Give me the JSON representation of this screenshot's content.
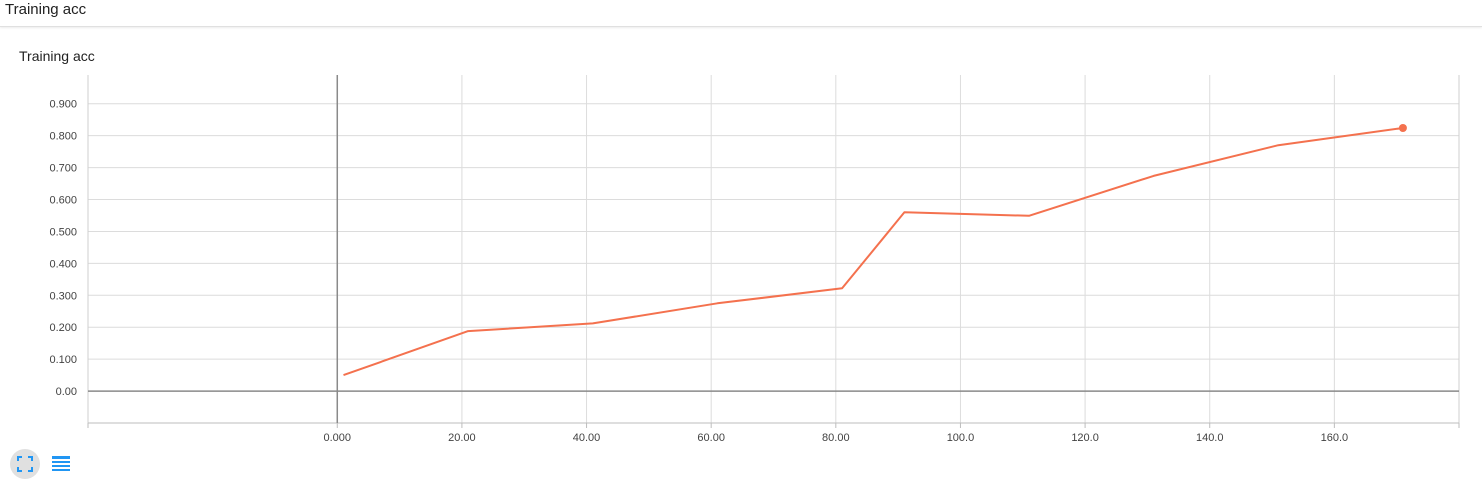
{
  "header": {
    "title": "Training acc"
  },
  "card": {
    "title": "Training acc"
  },
  "chart_data": {
    "type": "line",
    "title": "Training acc",
    "xlabel": "",
    "ylabel": "",
    "xlim": [
      -40,
      180
    ],
    "ylim": [
      -0.1,
      0.99
    ],
    "x_ticks": [
      0,
      20,
      40,
      60,
      80,
      100,
      120,
      140,
      160
    ],
    "x_tick_labels": [
      "0.000",
      "20.00",
      "40.00",
      "60.00",
      "80.00",
      "100.0",
      "120.0",
      "140.0",
      "160.0"
    ],
    "y_ticks": [
      0,
      0.1,
      0.2,
      0.3,
      0.4,
      0.5,
      0.6,
      0.7,
      0.8,
      0.9
    ],
    "y_tick_labels": [
      "0.00",
      "0.100",
      "0.200",
      "0.300",
      "0.400",
      "0.500",
      "0.600",
      "0.700",
      "0.800",
      "0.900"
    ],
    "grid": true,
    "series": [
      {
        "color": "#f4714e",
        "x": [
          1,
          21,
          41,
          61,
          81,
          91,
          111,
          131,
          151,
          171
        ],
        "y": [
          0.05,
          0.188,
          0.212,
          0.275,
          0.322,
          0.56,
          0.549,
          0.674,
          0.77,
          0.824
        ]
      }
    ]
  },
  "toolbar": {
    "expand_icon": "fullscreen-icon",
    "list_icon": "list-icon",
    "accent": "#2196f3"
  }
}
